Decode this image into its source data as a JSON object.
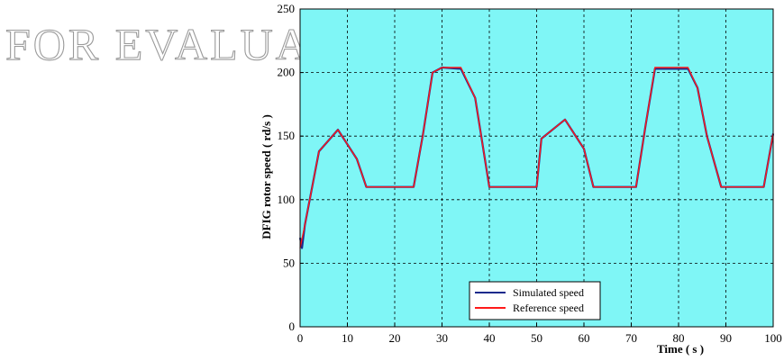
{
  "watermark": "FOR EVALUATION ONLY",
  "chart_data": {
    "type": "line",
    "title": "",
    "xlabel": "Time ( s )",
    "ylabel": "DFIG rotor speed ( rd/s )",
    "xlim": [
      0,
      100
    ],
    "ylim": [
      0,
      250
    ],
    "x_ticks": [
      "0",
      "10",
      "20",
      "30",
      "40",
      "50",
      "60",
      "70",
      "80",
      "90",
      "100"
    ],
    "y_ticks": [
      "0",
      "50",
      "100",
      "150",
      "200",
      "250"
    ],
    "grid": true,
    "legend_position": "bottom-center",
    "background_color": "#7ff6f6",
    "series": [
      {
        "name": "Simulated speed",
        "color": "#1a2a8c",
        "points": [
          [
            0,
            70
          ],
          [
            0.4,
            62
          ],
          [
            1,
            80
          ],
          [
            4,
            138
          ],
          [
            8,
            155
          ],
          [
            12,
            132
          ],
          [
            14,
            110
          ],
          [
            24,
            110
          ],
          [
            26,
            152
          ],
          [
            28,
            200
          ],
          [
            30,
            204
          ],
          [
            34,
            203
          ],
          [
            37,
            180
          ],
          [
            40,
            110
          ],
          [
            50,
            110
          ],
          [
            51,
            148
          ],
          [
            56,
            163
          ],
          [
            60,
            140
          ],
          [
            62,
            110
          ],
          [
            71,
            110
          ],
          [
            73,
            158
          ],
          [
            75,
            203
          ],
          [
            82,
            203
          ],
          [
            84,
            188
          ],
          [
            86,
            150
          ],
          [
            89,
            110
          ],
          [
            98,
            110
          ],
          [
            100,
            152
          ]
        ]
      },
      {
        "name": "Reference speed",
        "color": "#ff1a1a",
        "points": [
          [
            0,
            62
          ],
          [
            1,
            80
          ],
          [
            4,
            138
          ],
          [
            8,
            155
          ],
          [
            12,
            132
          ],
          [
            14,
            110
          ],
          [
            24,
            110
          ],
          [
            26,
            152
          ],
          [
            28,
            200
          ],
          [
            30,
            204
          ],
          [
            34,
            204
          ],
          [
            37,
            180
          ],
          [
            40,
            110
          ],
          [
            50,
            110
          ],
          [
            51,
            148
          ],
          [
            56,
            163
          ],
          [
            60,
            140
          ],
          [
            62,
            110
          ],
          [
            71,
            110
          ],
          [
            73,
            158
          ],
          [
            75,
            204
          ],
          [
            82,
            204
          ],
          [
            84,
            188
          ],
          [
            86,
            150
          ],
          [
            89,
            110
          ],
          [
            98,
            110
          ],
          [
            100,
            152
          ]
        ]
      }
    ]
  }
}
